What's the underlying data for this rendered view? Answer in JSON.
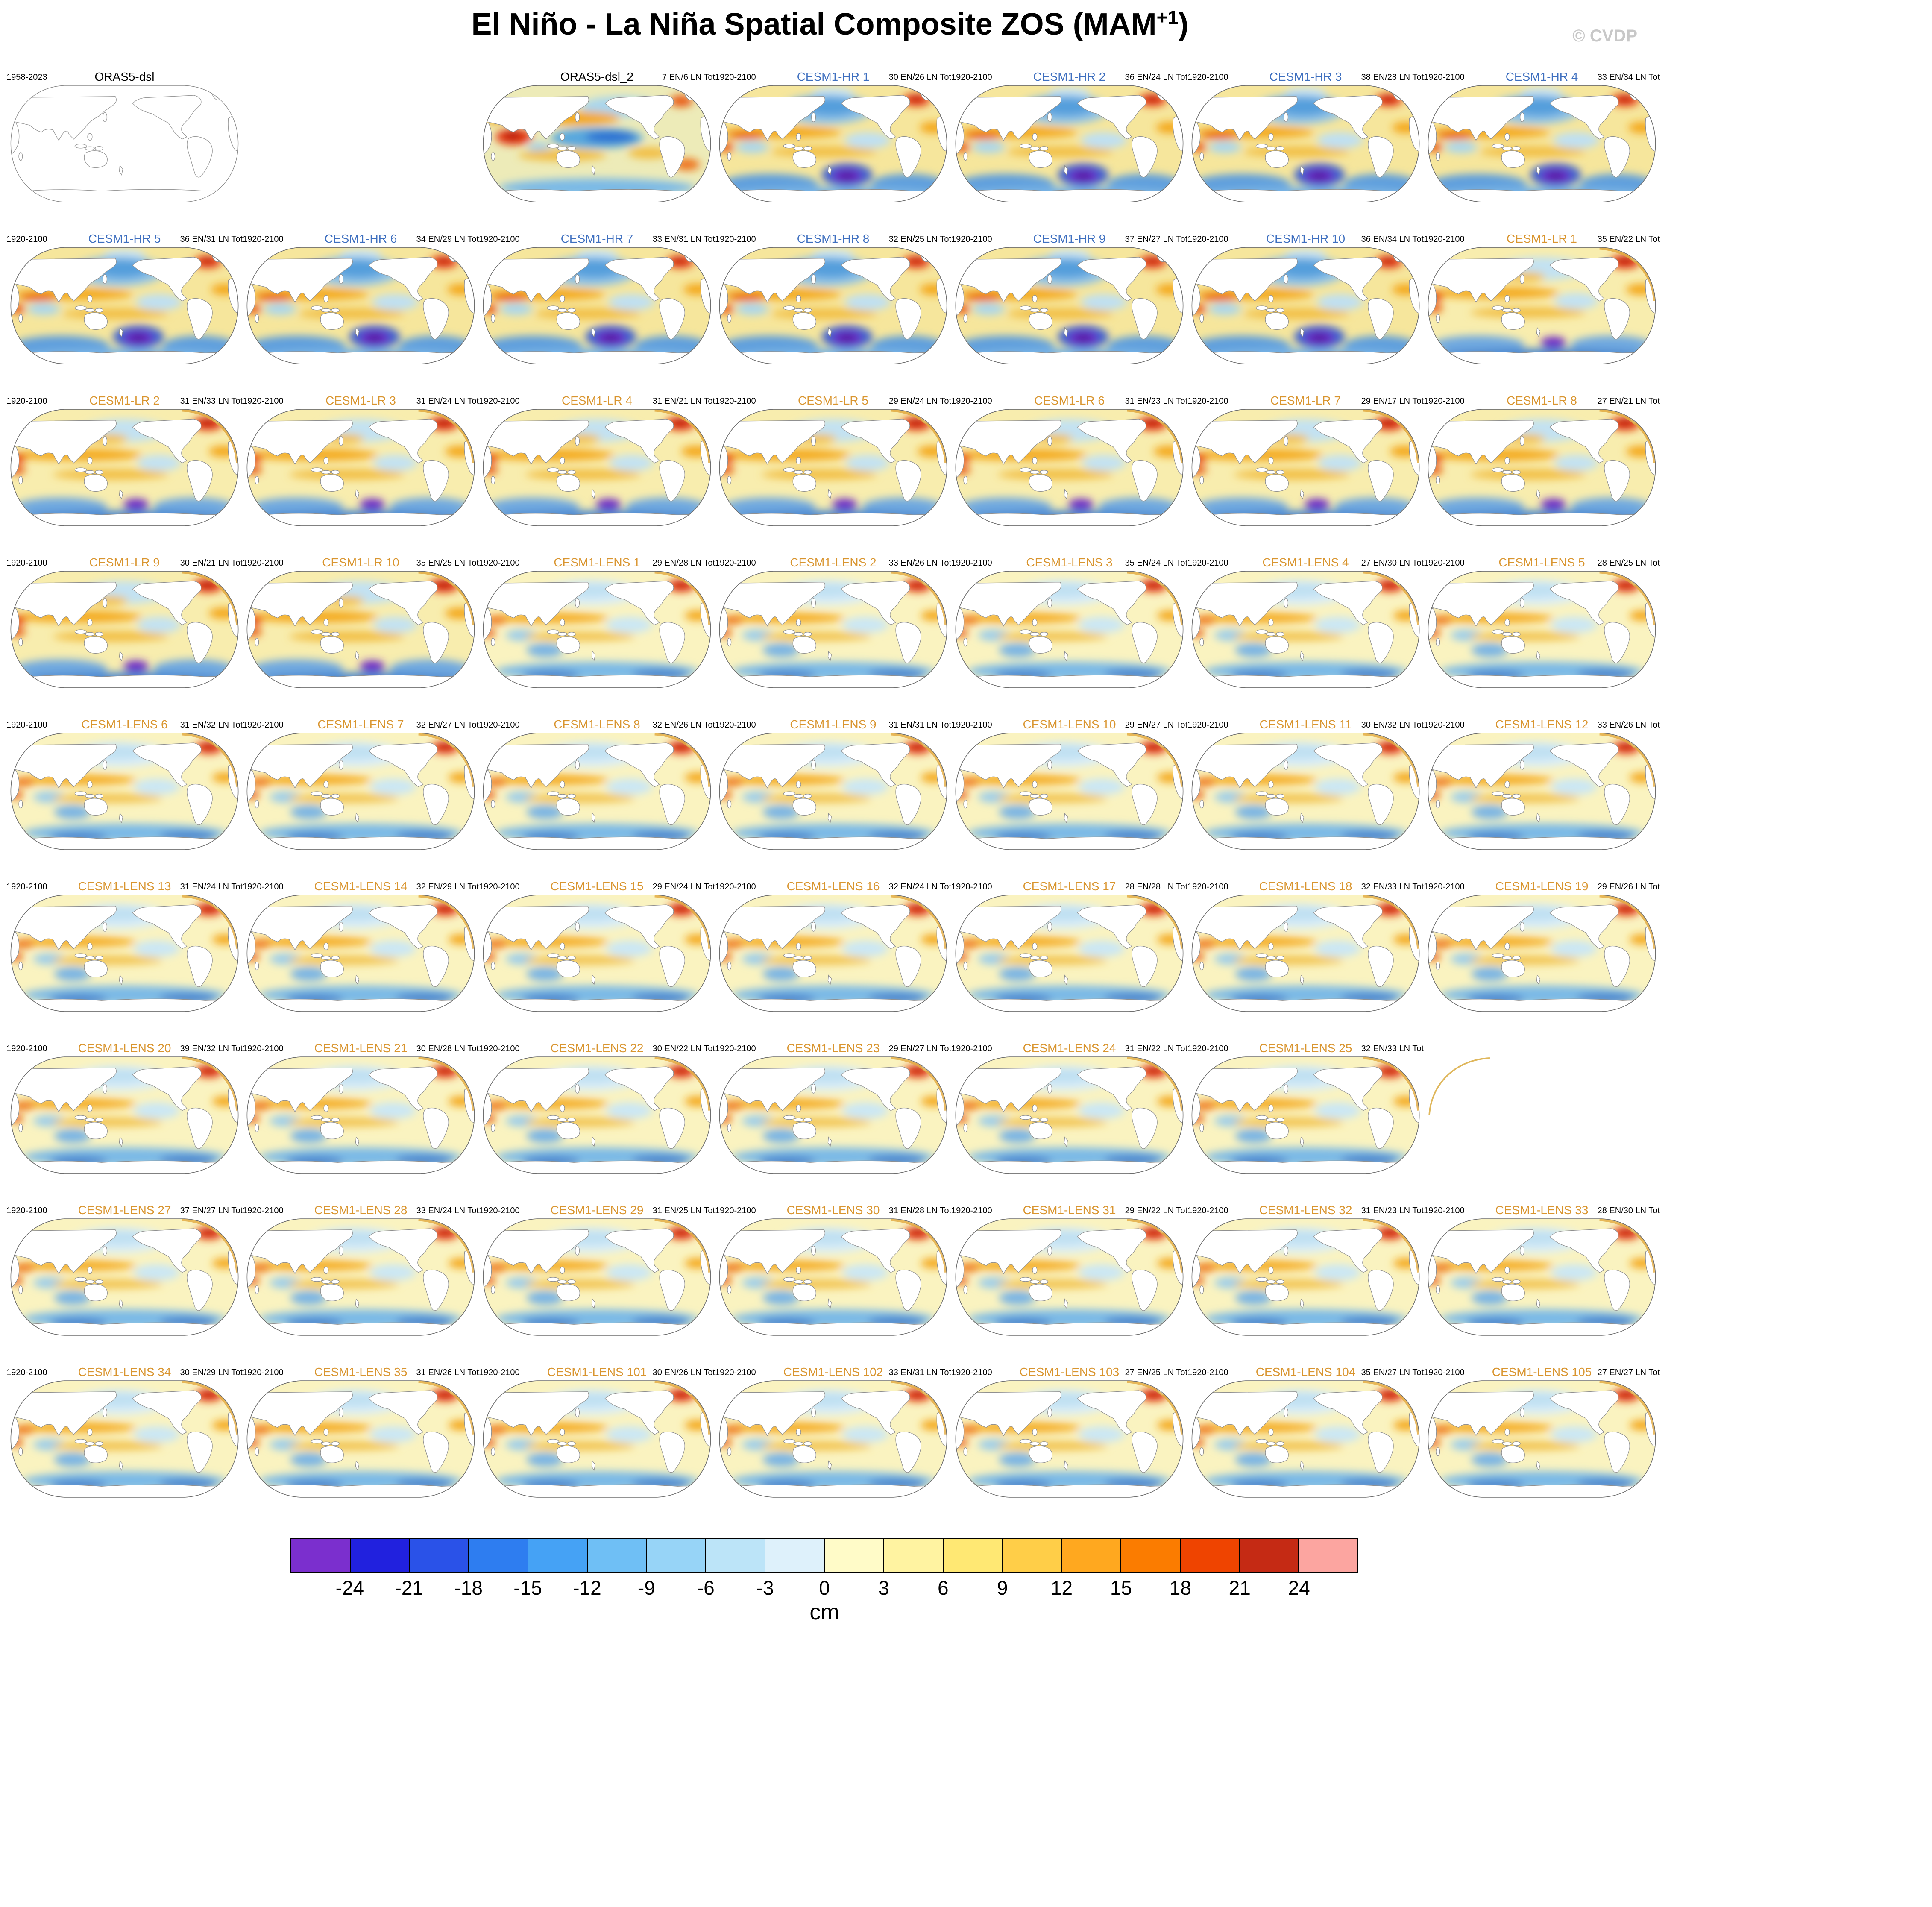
{
  "header": {
    "title_main": "El Niño - La Niña Spatial Composite ZOS (MAM",
    "title_sup": "+1",
    "title_close": ")",
    "credit": "© CVDP"
  },
  "colors": {
    "obs": "#000000",
    "hr": "#3E6FBF",
    "lr": "#D9952F",
    "lens": "#D9952F",
    "credit": "#C8C8C8"
  },
  "chart_data": {
    "type": "heatmap",
    "title": "El Niño - La Niña Spatial Composite ZOS (MAM+1)",
    "unit": "cm",
    "colorbar": {
      "ticks": [
        "-24",
        "-21",
        "-18",
        "-15",
        "-12",
        "-9",
        "-6",
        "-3",
        "0",
        "3",
        "6",
        "9",
        "12",
        "15",
        "18",
        "21",
        "24"
      ],
      "segments": [
        "#7B2FCE",
        "#2121DE",
        "#2A52E8",
        "#2E7DF0",
        "#45A2F5",
        "#6FBFF5",
        "#97D4F7",
        "#BCE4F8",
        "#DEF1FB",
        "#FFFBC8",
        "#FFF3A1",
        "#FFE873",
        "#FFCE48",
        "#FFA81F",
        "#FB7C00",
        "#EF4400",
        "#C52A14",
        "#FCA5A0"
      ]
    },
    "panels": [
      {
        "title": "ORAS5-dsl",
        "period": "1958-2023",
        "counts": "",
        "group": "obs",
        "variant": "blank",
        "row": 1,
        "col": 1
      },
      {
        "title": "ORAS5-dsl_2",
        "period": "",
        "counts": "7 EN/6 LN Tot",
        "en": 7,
        "ln": 6,
        "group": "obs",
        "variant": "obs2",
        "row": 1,
        "col": 3
      },
      {
        "title": "CESM1-HR 1",
        "period": "1920-2100",
        "counts": "30 EN/26 LN Tot",
        "en": 30,
        "ln": 26,
        "group": "hr",
        "variant": "hr",
        "row": 1,
        "col": 4
      },
      {
        "title": "CESM1-HR 2",
        "period": "1920-2100",
        "counts": "36 EN/24 LN Tot",
        "en": 36,
        "ln": 24,
        "group": "hr",
        "variant": "hr",
        "row": 1,
        "col": 5
      },
      {
        "title": "CESM1-HR 3",
        "period": "1920-2100",
        "counts": "38 EN/28 LN Tot",
        "en": 38,
        "ln": 28,
        "group": "hr",
        "variant": "hr",
        "row": 1,
        "col": 6
      },
      {
        "title": "CESM1-HR 4",
        "period": "1920-2100",
        "counts": "33 EN/34 LN Tot",
        "en": 33,
        "ln": 34,
        "group": "hr",
        "variant": "hr",
        "row": 1,
        "col": 7
      },
      {
        "title": "CESM1-HR 5",
        "period": "1920-2100",
        "counts": "36 EN/31 LN Tot",
        "en": 36,
        "ln": 31,
        "group": "hr",
        "variant": "hr",
        "row": 2,
        "col": 1
      },
      {
        "title": "CESM1-HR 6",
        "period": "1920-2100",
        "counts": "34 EN/29 LN Tot",
        "en": 34,
        "ln": 29,
        "group": "hr",
        "variant": "hr",
        "row": 2,
        "col": 2
      },
      {
        "title": "CESM1-HR 7",
        "period": "1920-2100",
        "counts": "33 EN/31 LN Tot",
        "en": 33,
        "ln": 31,
        "group": "hr",
        "variant": "hr",
        "row": 2,
        "col": 3
      },
      {
        "title": "CESM1-HR 8",
        "period": "1920-2100",
        "counts": "32 EN/25 LN Tot",
        "en": 32,
        "ln": 25,
        "group": "hr",
        "variant": "hr",
        "row": 2,
        "col": 4
      },
      {
        "title": "CESM1-HR 9",
        "period": "1920-2100",
        "counts": "37 EN/27 LN Tot",
        "en": 37,
        "ln": 27,
        "group": "hr",
        "variant": "hr",
        "row": 2,
        "col": 5
      },
      {
        "title": "CESM1-HR 10",
        "period": "1920-2100",
        "counts": "36 EN/34 LN Tot",
        "en": 36,
        "ln": 34,
        "group": "hr",
        "variant": "hr",
        "row": 2,
        "col": 6
      },
      {
        "title": "CESM1-LR 1",
        "period": "1920-2100",
        "counts": "35 EN/22 LN Tot",
        "en": 35,
        "ln": 22,
        "group": "lr",
        "variant": "lr",
        "row": 2,
        "col": 7
      },
      {
        "title": "CESM1-LR 2",
        "period": "1920-2100",
        "counts": "31 EN/33 LN Tot",
        "en": 31,
        "ln": 33,
        "group": "lr",
        "variant": "lr",
        "row": 3,
        "col": 1
      },
      {
        "title": "CESM1-LR 3",
        "period": "1920-2100",
        "counts": "31 EN/24 LN Tot",
        "en": 31,
        "ln": 24,
        "group": "lr",
        "variant": "lr",
        "row": 3,
        "col": 2
      },
      {
        "title": "CESM1-LR 4",
        "period": "1920-2100",
        "counts": "31 EN/21 LN Tot",
        "en": 31,
        "ln": 21,
        "group": "lr",
        "variant": "lr",
        "row": 3,
        "col": 3
      },
      {
        "title": "CESM1-LR 5",
        "period": "1920-2100",
        "counts": "29 EN/24 LN Tot",
        "en": 29,
        "ln": 24,
        "group": "lr",
        "variant": "lr",
        "row": 3,
        "col": 4
      },
      {
        "title": "CESM1-LR 6",
        "period": "1920-2100",
        "counts": "31 EN/23 LN Tot",
        "en": 31,
        "ln": 23,
        "group": "lr",
        "variant": "lr",
        "row": 3,
        "col": 5
      },
      {
        "title": "CESM1-LR 7",
        "period": "1920-2100",
        "counts": "29 EN/17 LN Tot",
        "en": 29,
        "ln": 17,
        "group": "lr",
        "variant": "lr",
        "row": 3,
        "col": 6
      },
      {
        "title": "CESM1-LR 8",
        "period": "1920-2100",
        "counts": "27 EN/21 LN Tot",
        "en": 27,
        "ln": 21,
        "group": "lr",
        "variant": "lr",
        "row": 3,
        "col": 7
      },
      {
        "title": "CESM1-LR 9",
        "period": "1920-2100",
        "counts": "30 EN/21 LN Tot",
        "en": 30,
        "ln": 21,
        "group": "lr",
        "variant": "lr",
        "row": 4,
        "col": 1
      },
      {
        "title": "CESM1-LR 10",
        "period": "1920-2100",
        "counts": "35 EN/25 LN Tot",
        "en": 35,
        "ln": 25,
        "group": "lr",
        "variant": "lr",
        "row": 4,
        "col": 2
      },
      {
        "title": "CESM1-LENS 1",
        "period": "1920-2100",
        "counts": "29 EN/28 LN Tot",
        "en": 29,
        "ln": 28,
        "group": "lens",
        "variant": "lens",
        "row": 4,
        "col": 3
      },
      {
        "title": "CESM1-LENS 2",
        "period": "1920-2100",
        "counts": "33 EN/26 LN Tot",
        "en": 33,
        "ln": 26,
        "group": "lens",
        "variant": "lens",
        "row": 4,
        "col": 4
      },
      {
        "title": "CESM1-LENS 3",
        "period": "1920-2100",
        "counts": "35 EN/24 LN Tot",
        "en": 35,
        "ln": 24,
        "group": "lens",
        "variant": "lens",
        "row": 4,
        "col": 5
      },
      {
        "title": "CESM1-LENS 4",
        "period": "1920-2100",
        "counts": "27 EN/30 LN Tot",
        "en": 27,
        "ln": 30,
        "group": "lens",
        "variant": "lens",
        "row": 4,
        "col": 6
      },
      {
        "title": "CESM1-LENS 5",
        "period": "1920-2100",
        "counts": "28 EN/25 LN Tot",
        "en": 28,
        "ln": 25,
        "group": "lens",
        "variant": "lens",
        "row": 4,
        "col": 7
      },
      {
        "title": "CESM1-LENS 6",
        "period": "1920-2100",
        "counts": "31 EN/32 LN Tot",
        "en": 31,
        "ln": 32,
        "group": "lens",
        "variant": "lens",
        "row": 5,
        "col": 1
      },
      {
        "title": "CESM1-LENS 7",
        "period": "1920-2100",
        "counts": "32 EN/27 LN Tot",
        "en": 32,
        "ln": 27,
        "group": "lens",
        "variant": "lens",
        "row": 5,
        "col": 2
      },
      {
        "title": "CESM1-LENS 8",
        "period": "1920-2100",
        "counts": "32 EN/26 LN Tot",
        "en": 32,
        "ln": 26,
        "group": "lens",
        "variant": "lens",
        "row": 5,
        "col": 3
      },
      {
        "title": "CESM1-LENS 9",
        "period": "1920-2100",
        "counts": "31 EN/31 LN Tot",
        "en": 31,
        "ln": 31,
        "group": "lens",
        "variant": "lens",
        "row": 5,
        "col": 4
      },
      {
        "title": "CESM1-LENS 10",
        "period": "1920-2100",
        "counts": "29 EN/27 LN Tot",
        "en": 29,
        "ln": 27,
        "group": "lens",
        "variant": "lens",
        "row": 5,
        "col": 5
      },
      {
        "title": "CESM1-LENS 11",
        "period": "1920-2100",
        "counts": "30 EN/32 LN Tot",
        "en": 30,
        "ln": 32,
        "group": "lens",
        "variant": "lens",
        "row": 5,
        "col": 6
      },
      {
        "title": "CESM1-LENS 12",
        "period": "1920-2100",
        "counts": "33 EN/26 LN Tot",
        "en": 33,
        "ln": 26,
        "group": "lens",
        "variant": "lens",
        "row": 5,
        "col": 7
      },
      {
        "title": "CESM1-LENS 13",
        "period": "1920-2100",
        "counts": "31 EN/24 LN Tot",
        "en": 31,
        "ln": 24,
        "group": "lens",
        "variant": "lens",
        "row": 6,
        "col": 1
      },
      {
        "title": "CESM1-LENS 14",
        "period": "1920-2100",
        "counts": "32 EN/29 LN Tot",
        "en": 32,
        "ln": 29,
        "group": "lens",
        "variant": "lens",
        "row": 6,
        "col": 2
      },
      {
        "title": "CESM1-LENS 15",
        "period": "1920-2100",
        "counts": "29 EN/24 LN Tot",
        "en": 29,
        "ln": 24,
        "group": "lens",
        "variant": "lens",
        "row": 6,
        "col": 3
      },
      {
        "title": "CESM1-LENS 16",
        "period": "1920-2100",
        "counts": "32 EN/24 LN Tot",
        "en": 32,
        "ln": 24,
        "group": "lens",
        "variant": "lens",
        "row": 6,
        "col": 4
      },
      {
        "title": "CESM1-LENS 17",
        "period": "1920-2100",
        "counts": "28 EN/28 LN Tot",
        "en": 28,
        "ln": 28,
        "group": "lens",
        "variant": "lens",
        "row": 6,
        "col": 5
      },
      {
        "title": "CESM1-LENS 18",
        "period": "1920-2100",
        "counts": "32 EN/33 LN Tot",
        "en": 32,
        "ln": 33,
        "group": "lens",
        "variant": "lens",
        "row": 6,
        "col": 6
      },
      {
        "title": "CESM1-LENS 19",
        "period": "1920-2100",
        "counts": "29 EN/26 LN Tot",
        "en": 29,
        "ln": 26,
        "group": "lens",
        "variant": "lens",
        "row": 6,
        "col": 7
      },
      {
        "title": "CESM1-LENS 20",
        "period": "1920-2100",
        "counts": "39 EN/32 LN Tot",
        "en": 39,
        "ln": 32,
        "group": "lens",
        "variant": "lens",
        "row": 7,
        "col": 1
      },
      {
        "title": "CESM1-LENS 21",
        "period": "1920-2100",
        "counts": "30 EN/28 LN Tot",
        "en": 30,
        "ln": 28,
        "group": "lens",
        "variant": "lens",
        "row": 7,
        "col": 2
      },
      {
        "title": "CESM1-LENS 22",
        "period": "1920-2100",
        "counts": "30 EN/22 LN Tot",
        "en": 30,
        "ln": 22,
        "group": "lens",
        "variant": "lens",
        "row": 7,
        "col": 3
      },
      {
        "title": "CESM1-LENS 23",
        "period": "1920-2100",
        "counts": "29 EN/27 LN Tot",
        "en": 29,
        "ln": 27,
        "group": "lens",
        "variant": "lens",
        "row": 7,
        "col": 4
      },
      {
        "title": "CESM1-LENS 24",
        "period": "1920-2100",
        "counts": "31 EN/22 LN Tot",
        "en": 31,
        "ln": 22,
        "group": "lens",
        "variant": "lens",
        "row": 7,
        "col": 5
      },
      {
        "title": "CESM1-LENS 25",
        "period": "1920-2100",
        "counts": "32 EN/33 LN Tot",
        "en": 32,
        "ln": 33,
        "group": "lens",
        "variant": "lens",
        "row": 7,
        "col": 6
      },
      {
        "title": "CESM1-LENS 27",
        "period": "1920-2100",
        "counts": "37 EN/27 LN Tot",
        "en": 37,
        "ln": 27,
        "group": "lens",
        "variant": "lens",
        "row": 8,
        "col": 1
      },
      {
        "title": "CESM1-LENS 28",
        "period": "1920-2100",
        "counts": "33 EN/24 LN Tot",
        "en": 33,
        "ln": 24,
        "group": "lens",
        "variant": "lens",
        "row": 8,
        "col": 2
      },
      {
        "title": "CESM1-LENS 29",
        "period": "1920-2100",
        "counts": "31 EN/25 LN Tot",
        "en": 31,
        "ln": 25,
        "group": "lens",
        "variant": "lens",
        "row": 8,
        "col": 3
      },
      {
        "title": "CESM1-LENS 30",
        "period": "1920-2100",
        "counts": "31 EN/28 LN Tot",
        "en": 31,
        "ln": 28,
        "group": "lens",
        "variant": "lens",
        "row": 8,
        "col": 4
      },
      {
        "title": "CESM1-LENS 31",
        "period": "1920-2100",
        "counts": "29 EN/22 LN Tot",
        "en": 29,
        "ln": 22,
        "group": "lens",
        "variant": "lens",
        "row": 8,
        "col": 5
      },
      {
        "title": "CESM1-LENS 32",
        "period": "1920-2100",
        "counts": "31 EN/23 LN Tot",
        "en": 31,
        "ln": 23,
        "group": "lens",
        "variant": "lens",
        "row": 8,
        "col": 6
      },
      {
        "title": "CESM1-LENS 33",
        "period": "1920-2100",
        "counts": "28 EN/30 LN Tot",
        "en": 28,
        "ln": 30,
        "group": "lens",
        "variant": "lens",
        "row": 8,
        "col": 7
      },
      {
        "title": "CESM1-LENS 34",
        "period": "1920-2100",
        "counts": "30 EN/29 LN Tot",
        "en": 30,
        "ln": 29,
        "group": "lens",
        "variant": "lens",
        "row": 9,
        "col": 1
      },
      {
        "title": "CESM1-LENS 35",
        "period": "1920-2100",
        "counts": "31 EN/26 LN Tot",
        "en": 31,
        "ln": 26,
        "group": "lens",
        "variant": "lens",
        "row": 9,
        "col": 2
      },
      {
        "title": "CESM1-LENS 101",
        "period": "1920-2100",
        "counts": "30 EN/26 LN Tot",
        "en": 30,
        "ln": 26,
        "group": "lens",
        "variant": "lens",
        "row": 9,
        "col": 3
      },
      {
        "title": "CESM1-LENS 102",
        "period": "1920-2100",
        "counts": "33 EN/31 LN Tot",
        "en": 33,
        "ln": 31,
        "group": "lens",
        "variant": "lens",
        "row": 9,
        "col": 4
      },
      {
        "title": "CESM1-LENS 103",
        "period": "1920-2100",
        "counts": "27 EN/25 LN Tot",
        "en": 27,
        "ln": 25,
        "group": "lens",
        "variant": "lens",
        "row": 9,
        "col": 5
      },
      {
        "title": "CESM1-LENS 104",
        "period": "1920-2100",
        "counts": "35 EN/27 LN Tot",
        "en": 35,
        "ln": 27,
        "group": "lens",
        "variant": "lens",
        "row": 9,
        "col": 6
      },
      {
        "title": "CESM1-LENS 105",
        "period": "1920-2100",
        "counts": "27 EN/27 LN Tot",
        "en": 27,
        "ln": 27,
        "group": "lens",
        "variant": "lens",
        "row": 9,
        "col": 7
      },
      {
        "title": "",
        "period": "",
        "counts": "",
        "group": "obs",
        "variant": "ghost",
        "row": 7,
        "col": 7
      }
    ]
  }
}
